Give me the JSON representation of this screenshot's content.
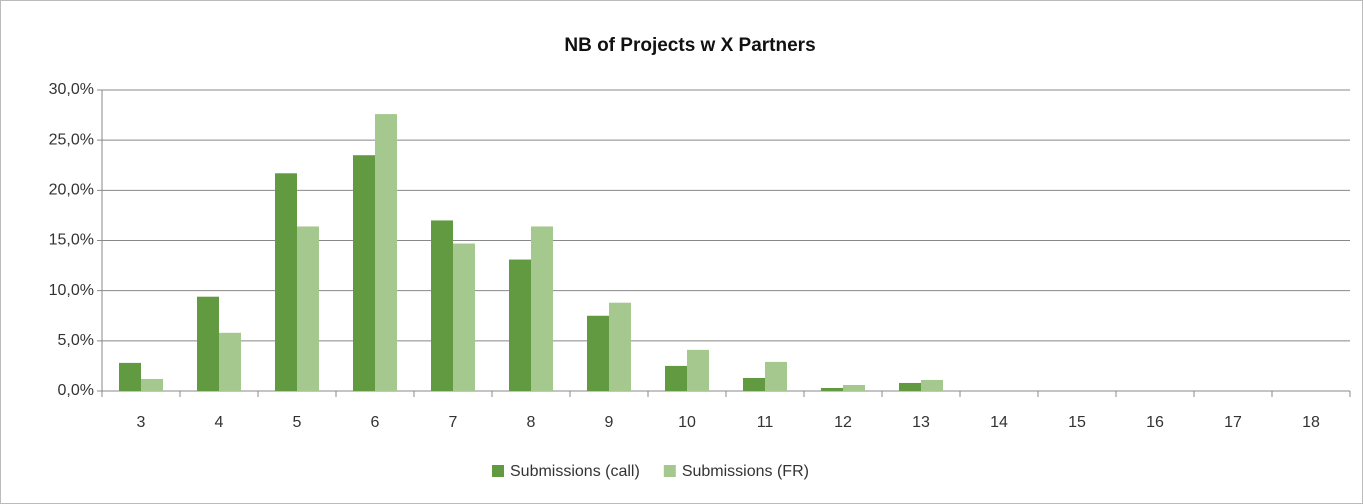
{
  "chart_data": {
    "type": "bar",
    "title": "NB of Projects w X Partners",
    "categories": [
      "3",
      "4",
      "5",
      "6",
      "7",
      "8",
      "9",
      "10",
      "11",
      "12",
      "13",
      "14",
      "15",
      "16",
      "17",
      "18"
    ],
    "series": [
      {
        "name": "Submissions (call)",
        "color": "#629a41",
        "values": [
          2.8,
          9.4,
          21.7,
          23.5,
          17.0,
          13.1,
          7.5,
          2.5,
          1.3,
          0.3,
          0.8,
          0,
          0,
          0,
          0,
          0
        ]
      },
      {
        "name": "Submissions (FR)",
        "color": "#a4c88e",
        "values": [
          1.2,
          5.8,
          16.4,
          27.6,
          14.7,
          16.4,
          8.8,
          4.1,
          2.9,
          0.6,
          1.1,
          0,
          0,
          0,
          0,
          0
        ]
      }
    ],
    "ylim": [
      0,
      30
    ],
    "yticks": [
      {
        "value": 0,
        "label": "0,0%"
      },
      {
        "value": 5,
        "label": "5,0%"
      },
      {
        "value": 10,
        "label": "10,0%"
      },
      {
        "value": 15,
        "label": "15,0%"
      },
      {
        "value": 20,
        "label": "20,0%"
      },
      {
        "value": 25,
        "label": "25,0%"
      },
      {
        "value": 30,
        "label": "30,0%"
      }
    ],
    "grid": true,
    "legend": "bottom"
  }
}
